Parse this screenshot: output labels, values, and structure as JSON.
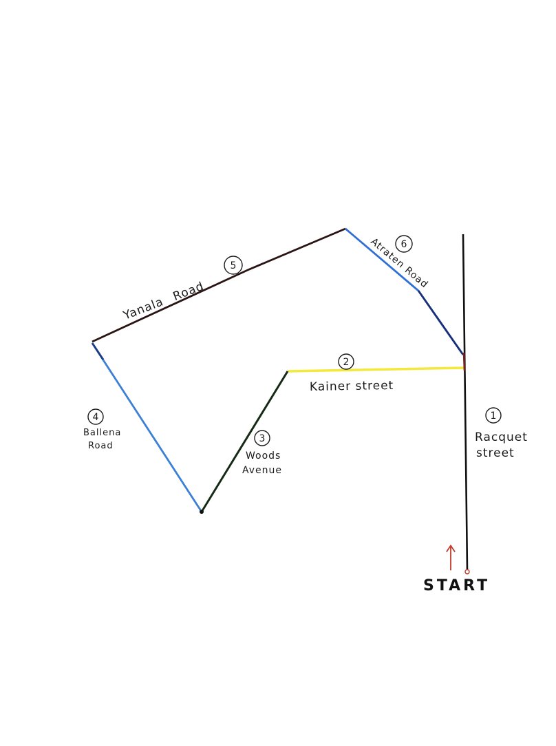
{
  "streets": {
    "racquet": {
      "number": "1",
      "name_line1": "Racquet",
      "name_line2": "street",
      "color": "#111111"
    },
    "kainer": {
      "number": "2",
      "name": "Kainer street",
      "color": "#f2e93a"
    },
    "woods": {
      "number": "3",
      "name_line1": "Woods",
      "name_line2": "Avenue",
      "color": "#142a14"
    },
    "ballena": {
      "number": "4",
      "name_line1": "Ballena",
      "name_line2": "Road",
      "color": "#3b7fd6"
    },
    "yanala": {
      "number": "5",
      "name": "Yanala Road",
      "color": "#2a1414"
    },
    "atraten": {
      "number": "6",
      "name": "Atraten Road",
      "color": "#2f6fd6"
    }
  },
  "start": {
    "label": "START",
    "arrow_color": "#c23a2a"
  }
}
